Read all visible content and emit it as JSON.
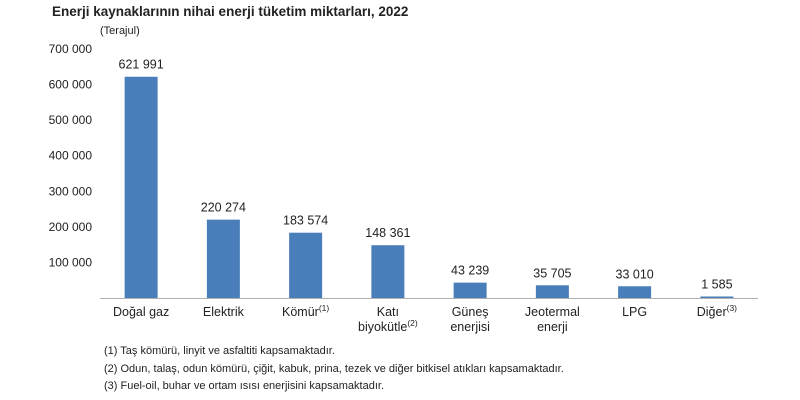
{
  "title": "Enerji kaynaklarının nihai enerji tüketim miktarları, 2022",
  "unit_label": "(Terajul)",
  "colors": {
    "bar": "#4a7ebb",
    "axis": "#b0b0b0",
    "text": "#222222"
  },
  "chart_data": {
    "type": "bar",
    "title": "Enerji kaynaklarının nihai enerji tüketim miktarları, 2022",
    "ylabel": "(Terajul)",
    "ylim": [
      0,
      700000
    ],
    "yticks": [
      100000,
      200000,
      300000,
      400000,
      500000,
      600000,
      700000
    ],
    "ytick_labels": [
      "100 000",
      "200 000",
      "300 000",
      "400 000",
      "500 000",
      "600 000",
      "700 000"
    ],
    "grid": false,
    "categories": [
      {
        "lines": [
          "Doğal gaz"
        ],
        "sup": ""
      },
      {
        "lines": [
          "Elektrik"
        ],
        "sup": ""
      },
      {
        "lines": [
          "Kömür"
        ],
        "sup": "(1)"
      },
      {
        "lines": [
          "Katı",
          "biyokütle"
        ],
        "sup": "(2)"
      },
      {
        "lines": [
          "Güneş",
          "enerjisi"
        ],
        "sup": ""
      },
      {
        "lines": [
          "Jeotermal",
          "enerji"
        ],
        "sup": ""
      },
      {
        "lines": [
          "LPG"
        ],
        "sup": ""
      },
      {
        "lines": [
          "Diğer"
        ],
        "sup": "(3)"
      }
    ],
    "values": [
      621991,
      220274,
      183574,
      148361,
      43239,
      35705,
      33010,
      1585
    ],
    "value_labels": [
      "621 991",
      "220 274",
      "183 574",
      "148 361",
      "43 239",
      "35 705",
      "33 010",
      "1 585"
    ]
  },
  "footnotes": [
    "(1) Taş kömürü, linyit ve asfaltiti kapsamaktadır.",
    "(2) Odun, talaş, odun kömürü, çiğit, kabuk, prina, tezek ve diğer bitkisel atıkları kapsamaktadır.",
    "(3) Fuel-oil, buhar ve ortam ısısı enerjisini kapsamaktadır."
  ]
}
